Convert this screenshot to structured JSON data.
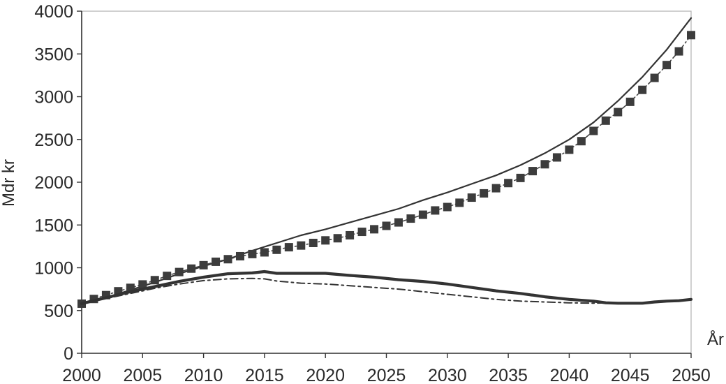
{
  "chart_data": {
    "type": "line",
    "title": "",
    "xlabel": "År",
    "ylabel": "Mdr kr",
    "xlim": [
      2000,
      2050
    ],
    "ylim": [
      0,
      4000
    ],
    "x_ticks": [
      2000,
      2005,
      2010,
      2015,
      2020,
      2025,
      2030,
      2035,
      2040,
      2045,
      2050
    ],
    "y_ticks": [
      0,
      500,
      1000,
      1500,
      2000,
      2500,
      3000,
      3500,
      4000
    ],
    "grid": false,
    "legend": "none",
    "series": [
      {
        "style": "solid-thin",
        "color": "#333333",
        "points": [
          [
            2000,
            580
          ],
          [
            2002,
            650
          ],
          [
            2004,
            740
          ],
          [
            2006,
            830
          ],
          [
            2008,
            930
          ],
          [
            2010,
            1020
          ],
          [
            2012,
            1100
          ],
          [
            2014,
            1200
          ],
          [
            2016,
            1290
          ],
          [
            2018,
            1380
          ],
          [
            2020,
            1450
          ],
          [
            2022,
            1530
          ],
          [
            2024,
            1610
          ],
          [
            2026,
            1690
          ],
          [
            2028,
            1790
          ],
          [
            2030,
            1880
          ],
          [
            2032,
            1980
          ],
          [
            2034,
            2080
          ],
          [
            2036,
            2200
          ],
          [
            2038,
            2340
          ],
          [
            2040,
            2500
          ],
          [
            2042,
            2700
          ],
          [
            2044,
            2950
          ],
          [
            2046,
            3230
          ],
          [
            2048,
            3550
          ],
          [
            2050,
            3920
          ]
        ]
      },
      {
        "style": "square-markers-dashdot",
        "color": "#444444",
        "points": [
          [
            2000,
            580
          ],
          [
            2001,
            635
          ],
          [
            2002,
            680
          ],
          [
            2003,
            725
          ],
          [
            2004,
            765
          ],
          [
            2005,
            805
          ],
          [
            2006,
            855
          ],
          [
            2007,
            905
          ],
          [
            2008,
            950
          ],
          [
            2009,
            990
          ],
          [
            2010,
            1030
          ],
          [
            2011,
            1070
          ],
          [
            2012,
            1100
          ],
          [
            2013,
            1135
          ],
          [
            2014,
            1160
          ],
          [
            2015,
            1180
          ],
          [
            2016,
            1210
          ],
          [
            2017,
            1240
          ],
          [
            2018,
            1260
          ],
          [
            2019,
            1290
          ],
          [
            2020,
            1320
          ],
          [
            2021,
            1345
          ],
          [
            2022,
            1380
          ],
          [
            2023,
            1420
          ],
          [
            2024,
            1450
          ],
          [
            2025,
            1490
          ],
          [
            2026,
            1530
          ],
          [
            2027,
            1575
          ],
          [
            2028,
            1620
          ],
          [
            2029,
            1670
          ],
          [
            2030,
            1710
          ],
          [
            2031,
            1760
          ],
          [
            2032,
            1820
          ],
          [
            2033,
            1870
          ],
          [
            2034,
            1930
          ],
          [
            2035,
            1990
          ],
          [
            2036,
            2050
          ],
          [
            2037,
            2130
          ],
          [
            2038,
            2210
          ],
          [
            2039,
            2290
          ],
          [
            2040,
            2380
          ],
          [
            2041,
            2480
          ],
          [
            2042,
            2600
          ],
          [
            2043,
            2720
          ],
          [
            2044,
            2820
          ],
          [
            2045,
            2940
          ],
          [
            2046,
            3080
          ],
          [
            2047,
            3220
          ],
          [
            2048,
            3370
          ],
          [
            2049,
            3530
          ],
          [
            2050,
            3720
          ]
        ]
      },
      {
        "style": "solid-thick",
        "color": "#333333",
        "points": [
          [
            2000,
            580
          ],
          [
            2002,
            650
          ],
          [
            2004,
            720
          ],
          [
            2006,
            780
          ],
          [
            2008,
            840
          ],
          [
            2010,
            890
          ],
          [
            2012,
            930
          ],
          [
            2014,
            940
          ],
          [
            2015,
            955
          ],
          [
            2016,
            935
          ],
          [
            2018,
            935
          ],
          [
            2020,
            935
          ],
          [
            2022,
            910
          ],
          [
            2024,
            890
          ],
          [
            2026,
            860
          ],
          [
            2028,
            840
          ],
          [
            2030,
            810
          ],
          [
            2032,
            770
          ],
          [
            2034,
            730
          ],
          [
            2036,
            700
          ],
          [
            2038,
            660
          ],
          [
            2040,
            630
          ],
          [
            2042,
            610
          ],
          [
            2043,
            590
          ],
          [
            2044,
            585
          ],
          [
            2046,
            585
          ],
          [
            2047,
            600
          ],
          [
            2048,
            610
          ],
          [
            2049,
            615
          ],
          [
            2050,
            630
          ]
        ]
      },
      {
        "style": "dashdot-thin",
        "color": "#333333",
        "points": [
          [
            2000,
            580
          ],
          [
            2002,
            640
          ],
          [
            2004,
            700
          ],
          [
            2006,
            760
          ],
          [
            2008,
            810
          ],
          [
            2010,
            850
          ],
          [
            2012,
            870
          ],
          [
            2014,
            875
          ],
          [
            2015,
            870
          ],
          [
            2016,
            845
          ],
          [
            2018,
            820
          ],
          [
            2020,
            810
          ],
          [
            2022,
            790
          ],
          [
            2024,
            770
          ],
          [
            2026,
            750
          ],
          [
            2028,
            720
          ],
          [
            2030,
            690
          ],
          [
            2032,
            660
          ],
          [
            2034,
            630
          ],
          [
            2036,
            610
          ],
          [
            2038,
            600
          ],
          [
            2040,
            590
          ],
          [
            2042,
            585
          ],
          [
            2043,
            590
          ]
        ]
      }
    ]
  }
}
